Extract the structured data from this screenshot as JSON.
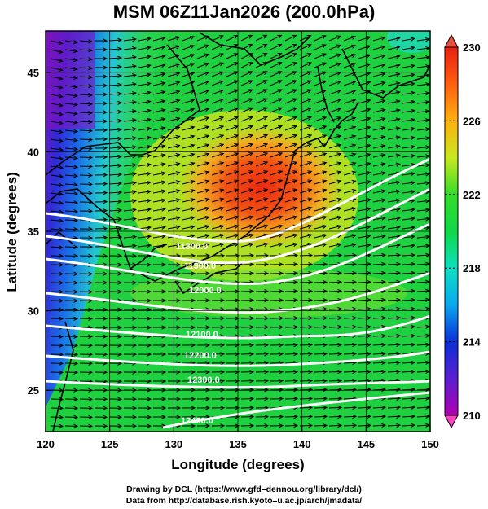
{
  "title": "MSM 06Z11Jan2026 (200.0hPa)",
  "axes": {
    "xlabel": "Longitude (degrees)",
    "ylabel": "Latitude  (degrees)",
    "xticks": [
      "120",
      "125",
      "130",
      "135",
      "140",
      "145",
      "150"
    ],
    "yticks": [
      "25",
      "30",
      "35",
      "40",
      "45"
    ],
    "xlim": [
      120,
      150
    ],
    "ylim": [
      22.4,
      47.6
    ]
  },
  "colorbar": {
    "ticks": [
      "230",
      "226",
      "222",
      "218",
      "214",
      "210"
    ],
    "range": [
      210,
      230
    ]
  },
  "contours": {
    "color": "#ffffff",
    "labels": [
      "11800.0",
      "11900.0",
      "12000.0",
      "12100.0",
      "12200.0",
      "12300.0",
      "12400.0"
    ]
  },
  "credits": {
    "line1": "Drawing by DCL (https://www.gfd–dennou.org/library/dcl/)",
    "line2": "Data from http://database.rish.kyoto–u.ac.jp/arch/jmadata/"
  }
}
